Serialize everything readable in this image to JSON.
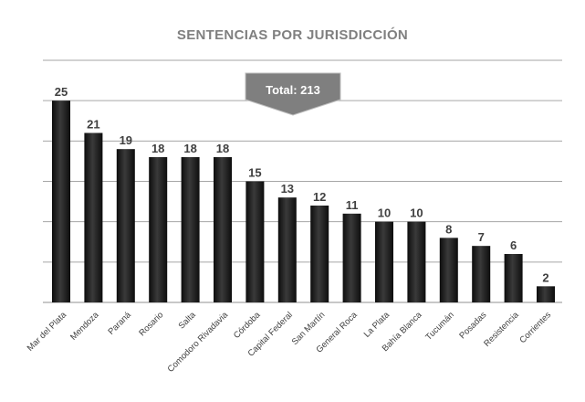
{
  "chart_data": {
    "type": "bar",
    "title": "SENTENCIAS POR JURISDICCIÓN",
    "categories": [
      "Mar del Plata",
      "Mendoza",
      "Paraná",
      "Rosario",
      "Salta",
      "Comodoro Rivadavia",
      "Córdoba",
      "Capital Federal",
      "San Martín",
      "General Roca",
      "La Plata",
      "Bahía Blanca",
      "Tucumán",
      "Posadas",
      "Resistencia",
      "Corrientes"
    ],
    "values": [
      25,
      21,
      19,
      18,
      18,
      18,
      15,
      13,
      12,
      11,
      10,
      10,
      8,
      7,
      6,
      2
    ],
    "ylim": [
      0,
      30
    ],
    "grid": true,
    "xlabel": "",
    "ylabel": "",
    "annotation": "Total: 213",
    "colors": {
      "bar": "#1f1f1f",
      "grid": "#a6a6a6",
      "label": "#404040",
      "callout": "#7f7f7f"
    }
  }
}
